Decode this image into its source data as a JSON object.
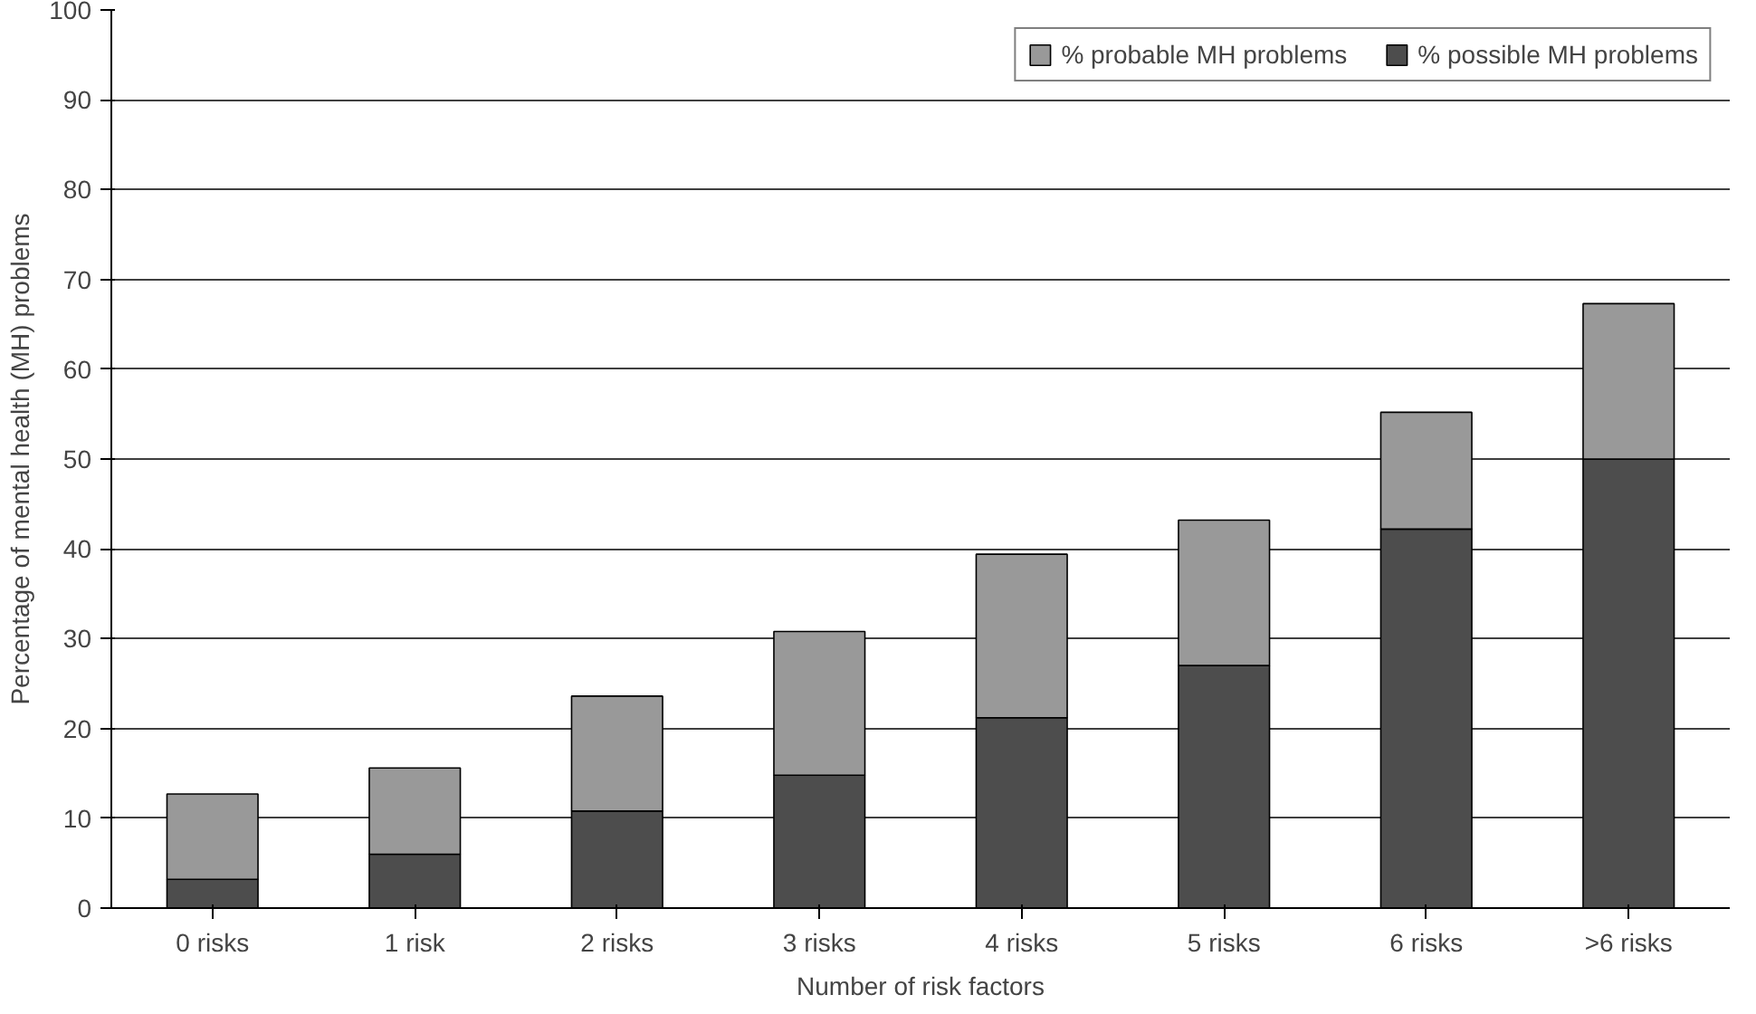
{
  "chart_data": {
    "type": "bar",
    "stacked": true,
    "xlabel": "Number of risk factors",
    "ylabel": "Percentage of mental health (MH) problems",
    "categories": [
      "0 risks",
      "1 risk",
      "2 risks",
      "3 risks",
      "4 risks",
      "5 risks",
      "6 risks",
      ">6 risks"
    ],
    "series": [
      {
        "name": "% possible MH problems",
        "color": "#4d4d4d",
        "values": [
          3.2,
          6,
          10.8,
          14.8,
          21.2,
          27,
          42.2,
          50
        ]
      },
      {
        "name": "% probable MH problems",
        "color": "#999999",
        "values": [
          9.5,
          9.6,
          12.8,
          16,
          18.2,
          16.2,
          13,
          17.3
        ]
      }
    ],
    "ylim": [
      0,
      100
    ],
    "yticks": [
      0,
      10,
      20,
      30,
      40,
      50,
      60,
      70,
      80,
      90,
      100
    ],
    "grid": "y",
    "legend": "top right"
  }
}
